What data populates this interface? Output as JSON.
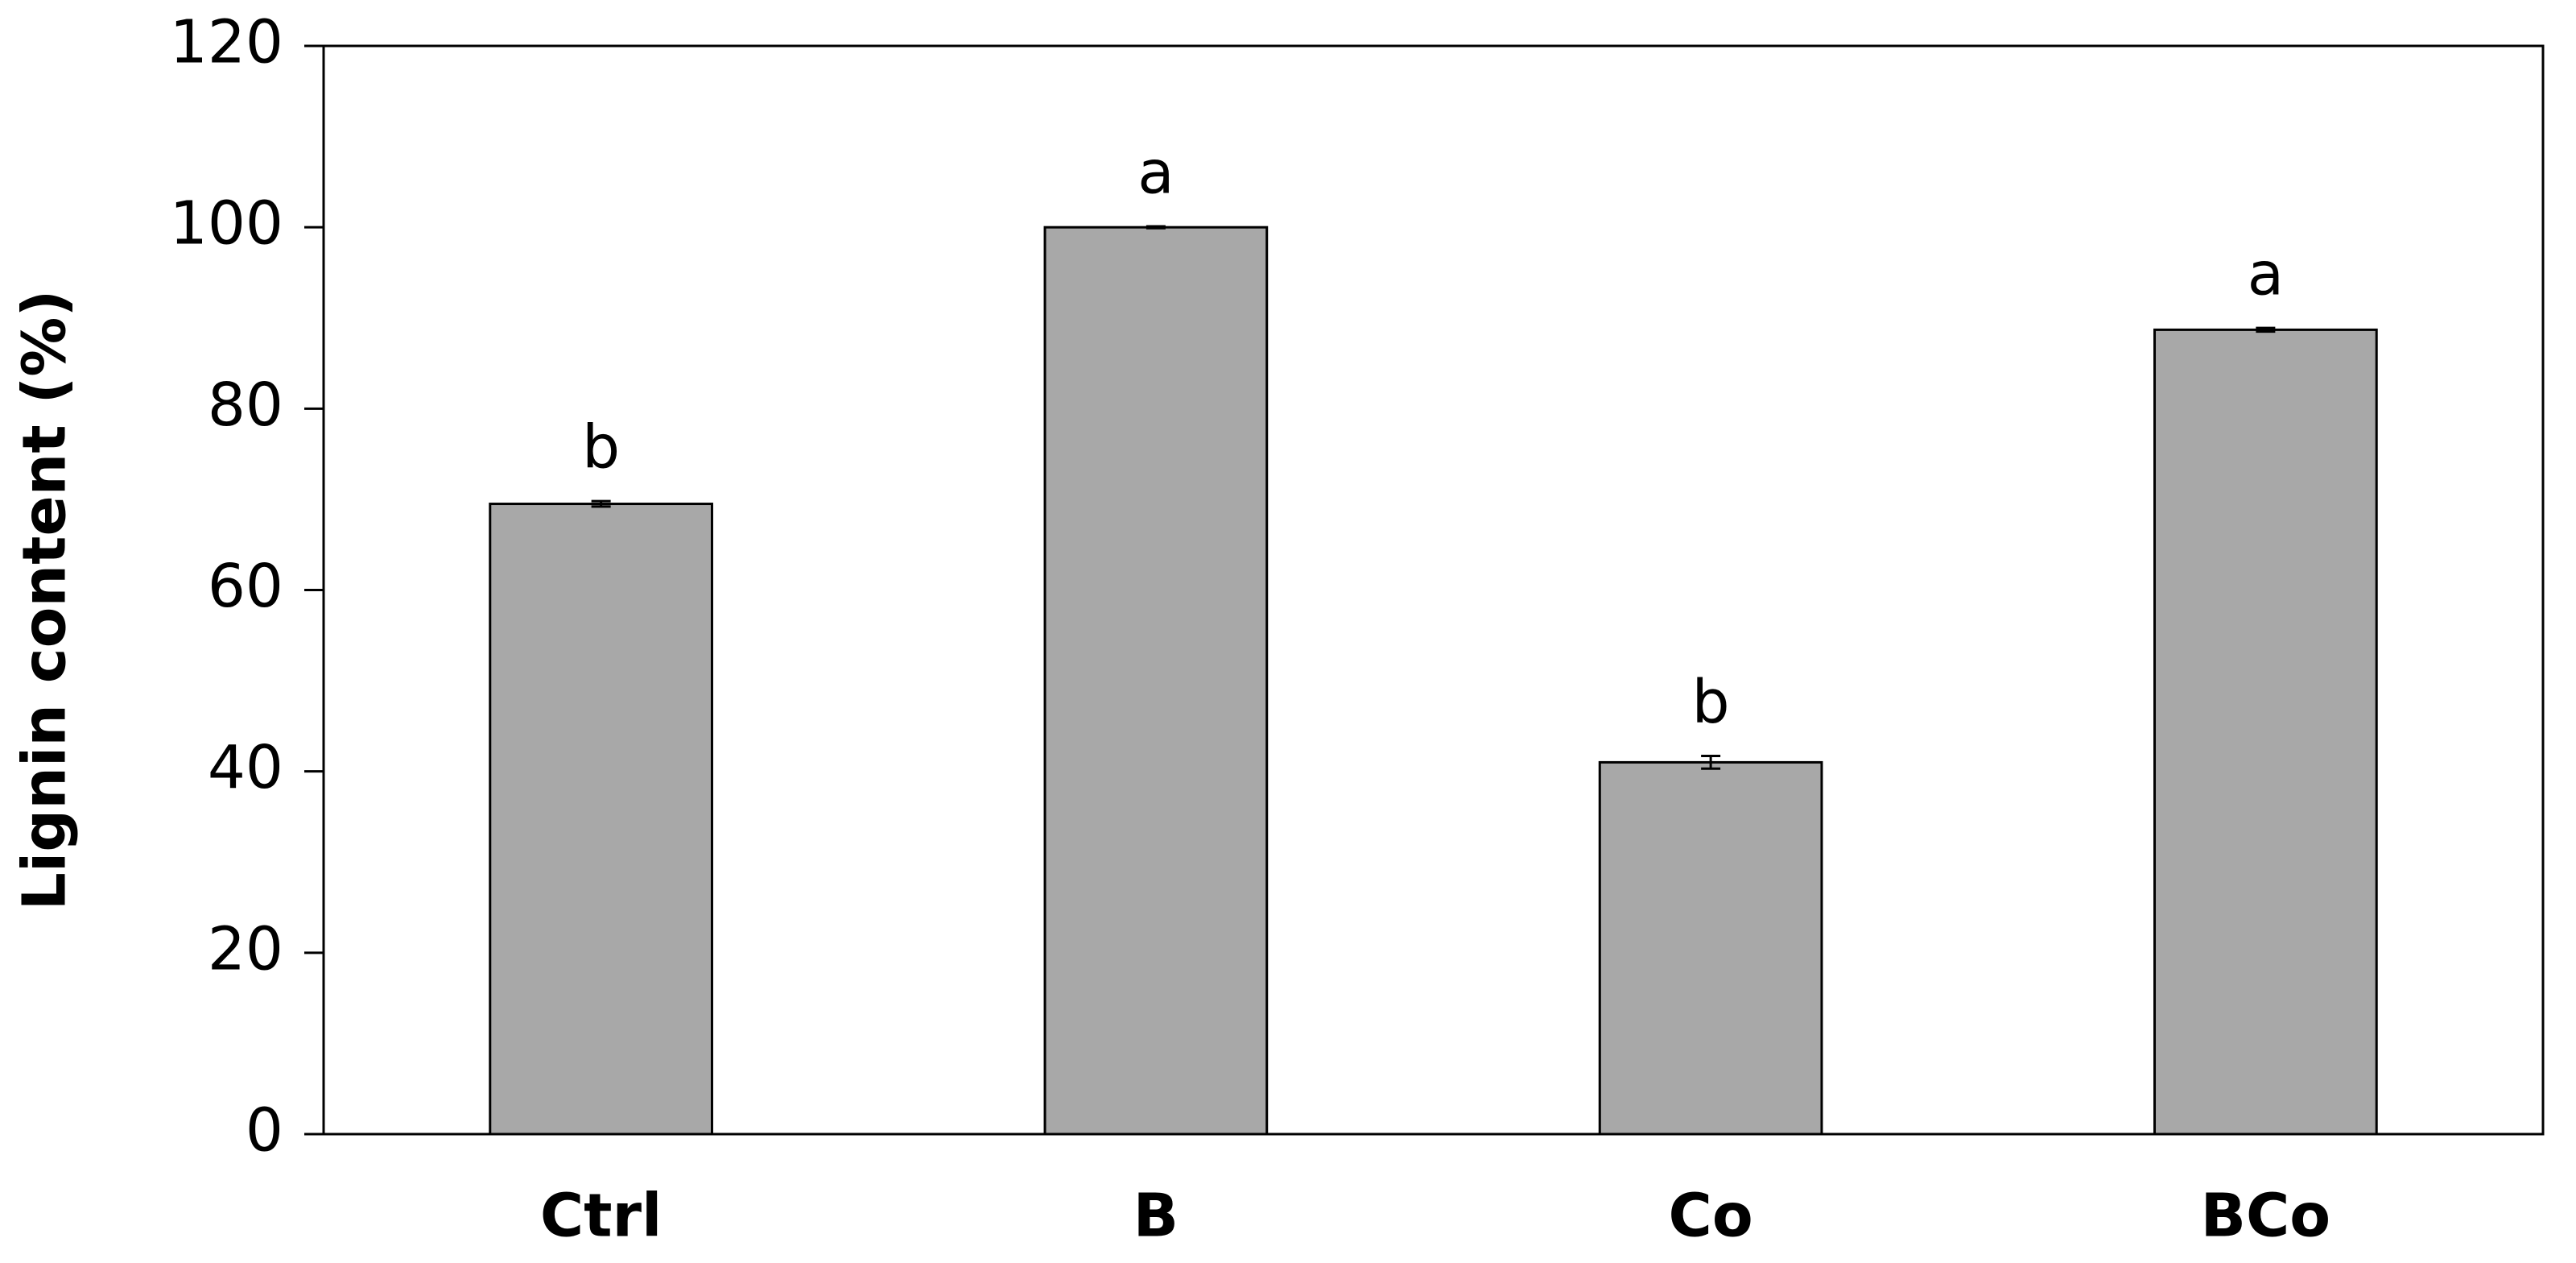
{
  "chart_data": {
    "type": "bar",
    "y_label": "Lignin content (%)",
    "categories": [
      "Ctrl",
      "B",
      "Co",
      "BCo"
    ],
    "values": [
      69.5,
      100,
      41,
      88.7
    ],
    "errors": [
      0.3,
      0.1,
      0.7,
      0.2
    ],
    "annotations": [
      "b",
      "a",
      "b",
      "a"
    ],
    "color": "#a8a8a8",
    "ylim": [
      0,
      120
    ],
    "yticks": [
      0,
      20,
      40,
      60,
      80,
      100,
      120
    ],
    "grid": false
  }
}
